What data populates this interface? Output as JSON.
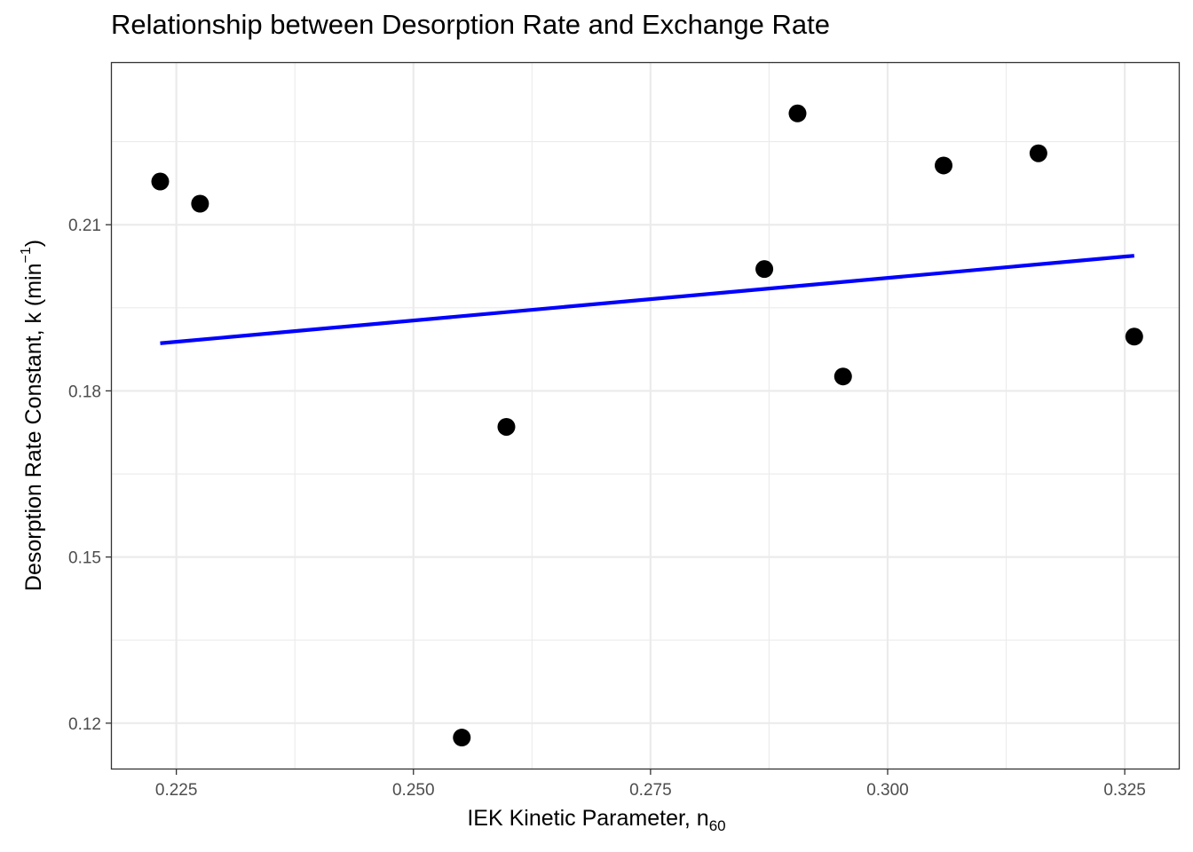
{
  "chart_data": {
    "type": "scatter",
    "title": "Relationship between Desorption Rate and Exchange Rate",
    "xlabel": {
      "main": "IEK Kinetic Parameter, n",
      "subscript": "60"
    },
    "ylabel": {
      "main": "Desorption Rate Constant, k (min",
      "superscript": "−1",
      "suffix": ")"
    },
    "xlim": [
      0.2182,
      0.3307
    ],
    "ylim": [
      0.1118,
      0.2392
    ],
    "x_ticks": [
      0.225,
      0.25,
      0.275,
      0.3,
      0.325
    ],
    "x_tick_labels": [
      "0.225",
      "0.250",
      "0.275",
      "0.300",
      "0.325"
    ],
    "y_ticks": [
      0.12,
      0.15,
      0.18,
      0.21
    ],
    "y_tick_labels": [
      "0.12",
      "0.15",
      "0.18",
      "0.21"
    ],
    "grid": true,
    "series": [
      {
        "points": [
          {
            "x": 0.2233,
            "y": 0.2178
          },
          {
            "x": 0.2275,
            "y": 0.2138
          },
          {
            "x": 0.2551,
            "y": 0.1174
          },
          {
            "x": 0.2598,
            "y": 0.1735
          },
          {
            "x": 0.287,
            "y": 0.202
          },
          {
            "x": 0.2905,
            "y": 0.2301
          },
          {
            "x": 0.2953,
            "y": 0.1826
          },
          {
            "x": 0.3059,
            "y": 0.2207
          },
          {
            "x": 0.3159,
            "y": 0.2229
          },
          {
            "x": 0.326,
            "y": 0.1898
          }
        ],
        "color": "#000000"
      }
    ],
    "fit_line": {
      "x": [
        0.2233,
        0.326
      ],
      "y": [
        0.1886,
        0.2044
      ],
      "color": "#0000ff"
    }
  }
}
